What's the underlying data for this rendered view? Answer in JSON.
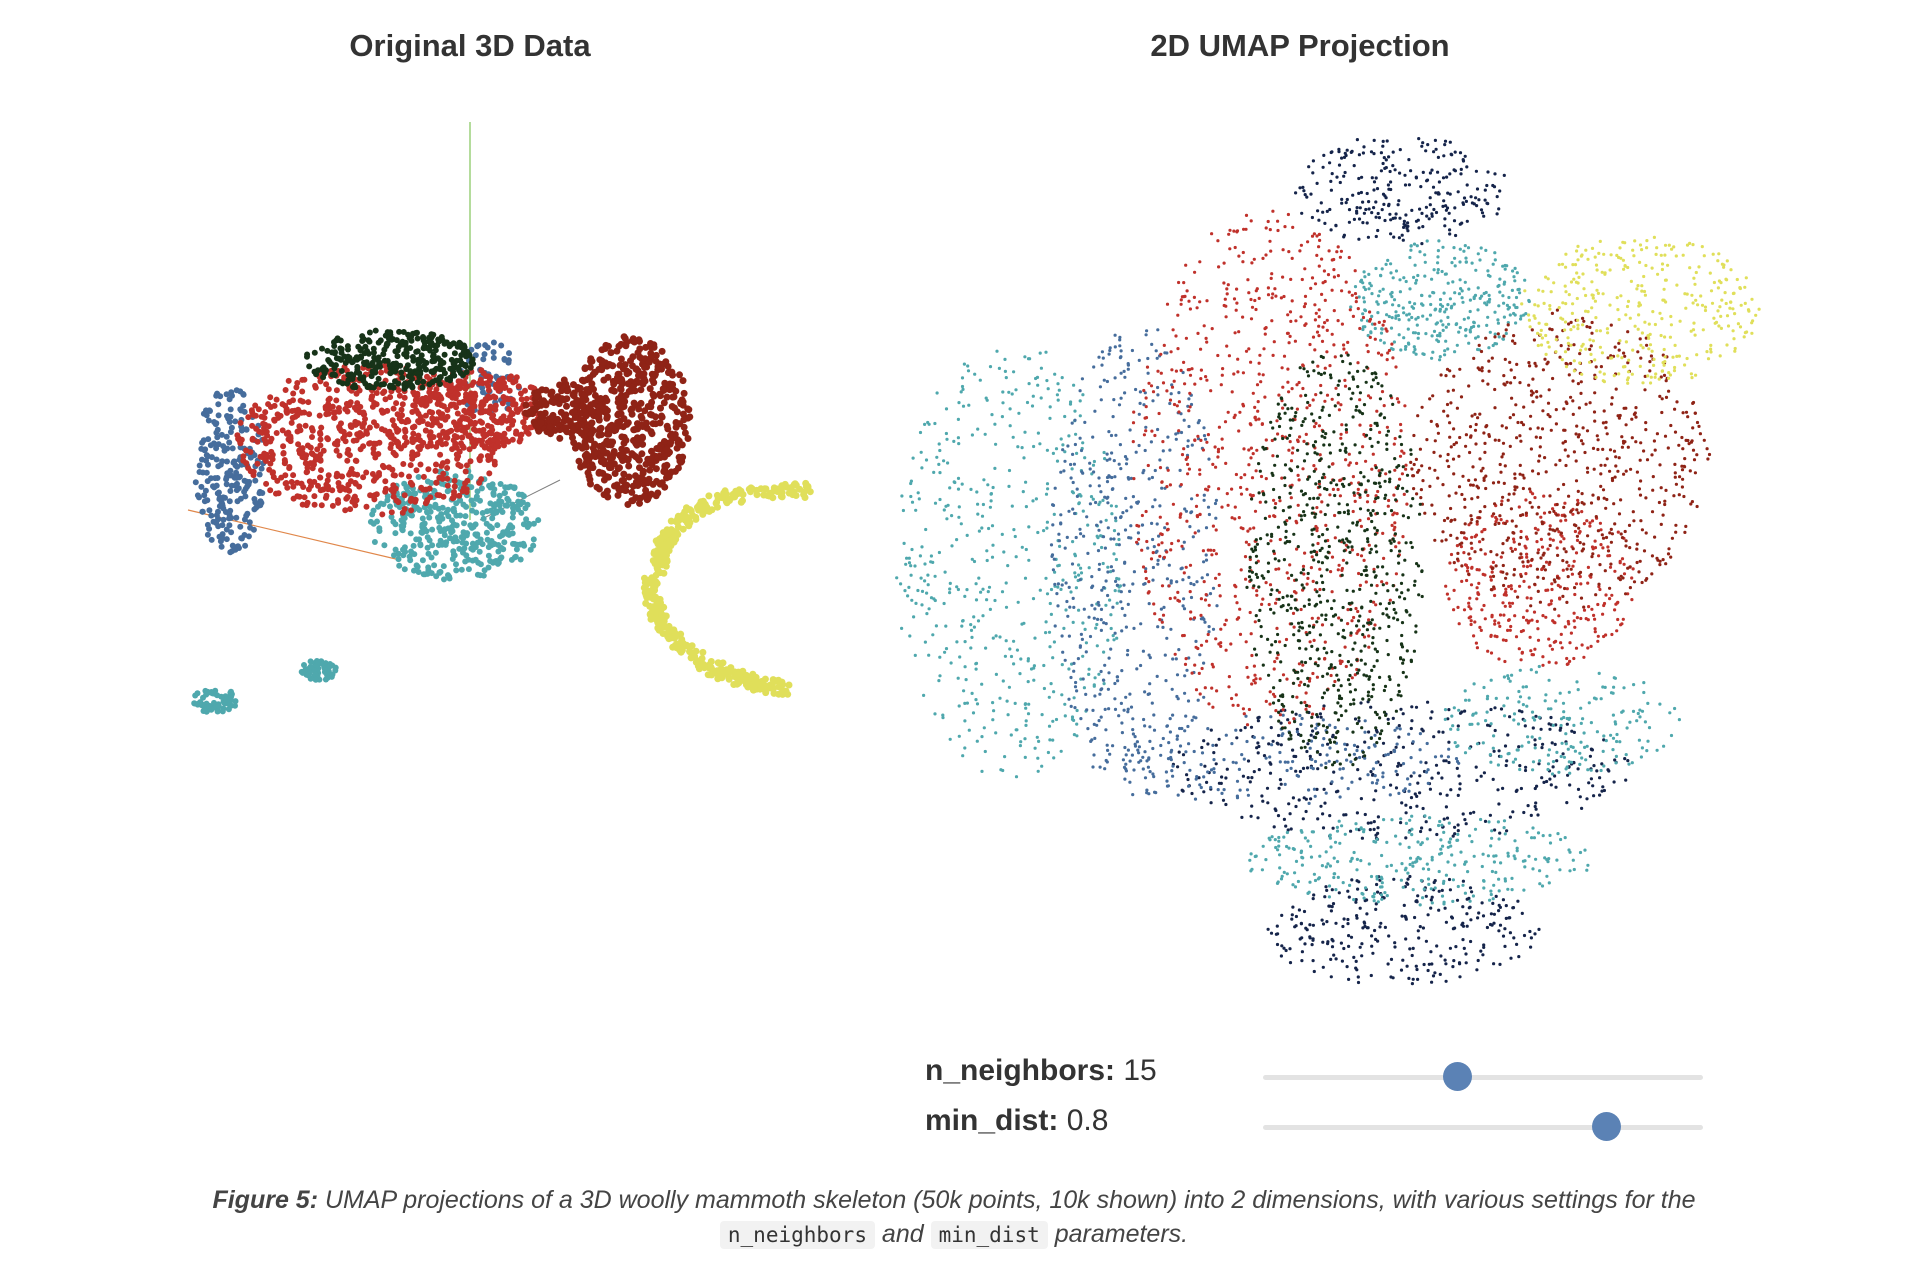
{
  "panels": {
    "left_title": "Original 3D Data",
    "right_title": "2D UMAP Projection"
  },
  "controls": {
    "n_neighbors": {
      "label": "n_neighbors:",
      "value": "15",
      "fraction": 0.44
    },
    "min_dist": {
      "label": "min_dist:",
      "value": "0.8",
      "fraction": 0.78
    }
  },
  "caption": {
    "figure_label": "Figure 5:",
    "text_part1": "UMAP projections of a 3D woolly mammoth skeleton (50k points, 10k shown) into 2 dimensions, with various settings for the",
    "code1": "n_neighbors",
    "text_part2": "and",
    "code2": "min_dist",
    "text_part3": "parameters."
  },
  "colors": {
    "teal": "#4fa8ad",
    "red": "#c0312b",
    "dark_red": "#8f2316",
    "dark_green": "#173318",
    "blue": "#466d9c",
    "navy": "#15244a",
    "yellow": "#e0df5a",
    "slider_knob": "#5b82b5",
    "slider_track": "#e3e3e3"
  },
  "chart_data": [
    {
      "type": "scatter",
      "title": "Original 3D Data",
      "description_dims": 3,
      "series": [
        {
          "color": "#4fa8ad"
        },
        {
          "color": "#c0312b"
        },
        {
          "color": "#8f2316"
        },
        {
          "color": "#173318"
        },
        {
          "color": "#466d9c"
        },
        {
          "color": "#15244a"
        },
        {
          "color": "#e0df5a"
        }
      ]
    },
    {
      "type": "scatter",
      "title": "2D UMAP Projection",
      "description_dims": 2,
      "series": [
        {
          "color": "#4fa8ad"
        },
        {
          "color": "#c0312b"
        },
        {
          "color": "#8f2316"
        },
        {
          "color": "#173318"
        },
        {
          "color": "#466d9c"
        },
        {
          "color": "#15244a"
        },
        {
          "color": "#e0df5a"
        }
      ]
    }
  ]
}
